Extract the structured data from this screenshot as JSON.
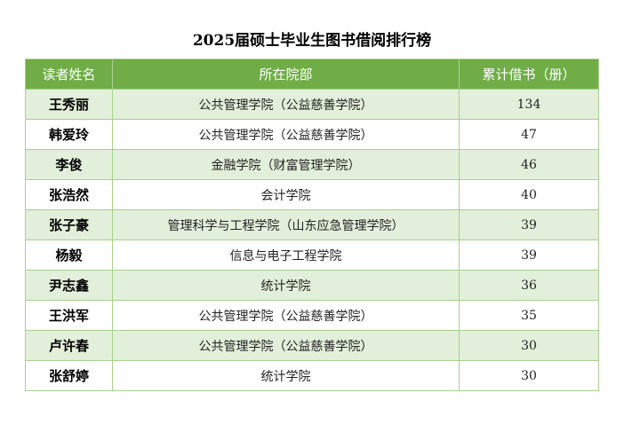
{
  "title": "2025届硕士毕业生图书借阅排行榜",
  "headers": {
    "name": "读者姓名",
    "department": "所在院部",
    "count": "累计借书（册）"
  },
  "rows": [
    {
      "name": "王秀丽",
      "department": "公共管理学院（公益慈善学院）",
      "count": "134"
    },
    {
      "name": "韩爱玲",
      "department": "公共管理学院（公益慈善学院）",
      "count": "47"
    },
    {
      "name": "李俊",
      "department": "金融学院（财富管理学院）",
      "count": "46"
    },
    {
      "name": "张浩然",
      "department": "会计学院",
      "count": "40"
    },
    {
      "name": "张子豪",
      "department": "管理科学与工程学院（山东应急管理学院）",
      "count": "39"
    },
    {
      "name": "杨毅",
      "department": "信息与电子工程学院",
      "count": "39"
    },
    {
      "name": "尹志鑫",
      "department": "统计学院",
      "count": "36"
    },
    {
      "name": "王洪军",
      "department": "公共管理学院（公益慈善学院）",
      "count": "35"
    },
    {
      "name": "卢许春",
      "department": "公共管理学院（公益慈善学院）",
      "count": "30"
    },
    {
      "name": "张舒婷",
      "department": "统计学院",
      "count": "30"
    }
  ],
  "colors": {
    "header_bg": "#70ad47",
    "header_text": "#ffffff",
    "odd_row_bg": "#e2efda",
    "even_row_bg": "#ffffff",
    "border": "#a9d08e"
  }
}
